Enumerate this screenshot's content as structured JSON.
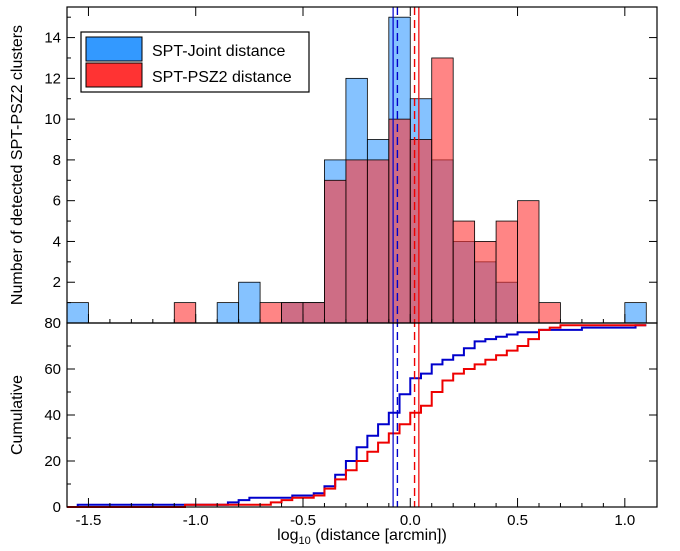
{
  "chart_data": [
    {
      "type": "bar",
      "panel": "histogram",
      "ylabel": "Number of detected SPT-PSZ2 clusters",
      "xlim": [
        -1.6,
        1.15
      ],
      "ylim": [
        0,
        15.5
      ],
      "yticks": [
        2,
        4,
        6,
        8,
        10,
        12,
        14
      ],
      "ytick_labels": [
        "2",
        "4",
        "6",
        "8",
        "10",
        "12",
        "14"
      ],
      "bin_width": 0.1,
      "series": [
        {
          "name": "SPT-Joint distance",
          "color": "#3399ff",
          "bins": [
            {
              "x0": -1.6,
              "count": 1
            },
            {
              "x0": -0.9,
              "count": 1
            },
            {
              "x0": -0.8,
              "count": 2
            },
            {
              "x0": -0.6,
              "count": 1
            },
            {
              "x0": -0.5,
              "count": 1
            },
            {
              "x0": -0.4,
              "count": 8
            },
            {
              "x0": -0.3,
              "count": 12
            },
            {
              "x0": -0.2,
              "count": 9
            },
            {
              "x0": -0.1,
              "count": 15
            },
            {
              "x0": 0.0,
              "count": 11
            },
            {
              "x0": 0.1,
              "count": 8
            },
            {
              "x0": 0.2,
              "count": 4
            },
            {
              "x0": 0.3,
              "count": 3
            },
            {
              "x0": 0.4,
              "count": 2
            },
            {
              "x0": 1.0,
              "count": 1
            }
          ]
        },
        {
          "name": "SPT-PSZ2 distance",
          "color": "#ff3333",
          "bins": [
            {
              "x0": -1.1,
              "count": 1
            },
            {
              "x0": -0.7,
              "count": 1
            },
            {
              "x0": -0.6,
              "count": 1
            },
            {
              "x0": -0.5,
              "count": 1
            },
            {
              "x0": -0.4,
              "count": 7
            },
            {
              "x0": -0.3,
              "count": 8
            },
            {
              "x0": -0.2,
              "count": 8
            },
            {
              "x0": -0.1,
              "count": 10
            },
            {
              "x0": 0.0,
              "count": 9
            },
            {
              "x0": 0.1,
              "count": 13
            },
            {
              "x0": 0.2,
              "count": 5
            },
            {
              "x0": 0.3,
              "count": 4
            },
            {
              "x0": 0.4,
              "count": 5
            },
            {
              "x0": 0.5,
              "count": 6
            },
            {
              "x0": 0.6,
              "count": 1
            }
          ]
        }
      ],
      "vlines": [
        {
          "series": "SPT-Joint distance",
          "solid": -0.08,
          "dashed": -0.06,
          "color": "#0000cc"
        },
        {
          "series": "SPT-PSZ2 distance",
          "solid": 0.04,
          "dashed": 0.02,
          "color": "#ee0000"
        }
      ]
    },
    {
      "type": "line",
      "panel": "cumulative",
      "xlabel_prefix": "log",
      "xlabel_sub": "10",
      "xlabel_suffix": " (distance [arcmin])",
      "ylabel": "Cumulative",
      "xlim": [
        -1.6,
        1.15
      ],
      "ylim": [
        0,
        80
      ],
      "xticks": [
        -1.5,
        -1.0,
        -0.5,
        0.0,
        0.5,
        1.0
      ],
      "xtick_labels": [
        "-1.5",
        "-1.0",
        "-0.5",
        "0.0",
        "0.5",
        "1.0"
      ],
      "yticks": [
        0,
        20,
        40,
        60,
        80
      ],
      "ytick_labels": [
        "0",
        "20",
        "40",
        "60",
        "80"
      ],
      "series": [
        {
          "name": "SPT-Joint distance",
          "color": "#0000cc",
          "x": [
            -1.6,
            -1.55,
            -0.9,
            -0.85,
            -0.8,
            -0.75,
            -0.6,
            -0.55,
            -0.5,
            -0.45,
            -0.4,
            -0.35,
            -0.3,
            -0.25,
            -0.2,
            -0.15,
            -0.1,
            -0.05,
            0.0,
            0.05,
            0.1,
            0.15,
            0.2,
            0.25,
            0.3,
            0.35,
            0.4,
            0.45,
            0.5,
            0.55,
            0.6,
            0.7,
            0.8,
            1.0,
            1.05,
            1.1
          ],
          "y": [
            0,
            1,
            1,
            2,
            3,
            4,
            4,
            5,
            5,
            6,
            9,
            14,
            20,
            26,
            31,
            36,
            41,
            49,
            56,
            58,
            62,
            64,
            66,
            69,
            72,
            73,
            74,
            75,
            76,
            76,
            77,
            77,
            78,
            78,
            79,
            79
          ]
        },
        {
          "name": "SPT-PSZ2 distance",
          "color": "#ee0000",
          "x": [
            -1.6,
            -1.1,
            -1.05,
            -0.7,
            -0.65,
            -0.6,
            -0.55,
            -0.5,
            -0.45,
            -0.4,
            -0.35,
            -0.3,
            -0.25,
            -0.2,
            -0.15,
            -0.1,
            -0.05,
            0.0,
            0.05,
            0.1,
            0.15,
            0.2,
            0.25,
            0.3,
            0.35,
            0.4,
            0.45,
            0.5,
            0.55,
            0.6,
            0.65,
            0.7,
            1.1
          ],
          "y": [
            0,
            0,
            1,
            1,
            2,
            3,
            4,
            4,
            5,
            8,
            12,
            16,
            20,
            24,
            28,
            32,
            36,
            41,
            44,
            50,
            55,
            58,
            60,
            62,
            64,
            66,
            68,
            70,
            73,
            77,
            78,
            79,
            79
          ]
        }
      ]
    }
  ]
}
